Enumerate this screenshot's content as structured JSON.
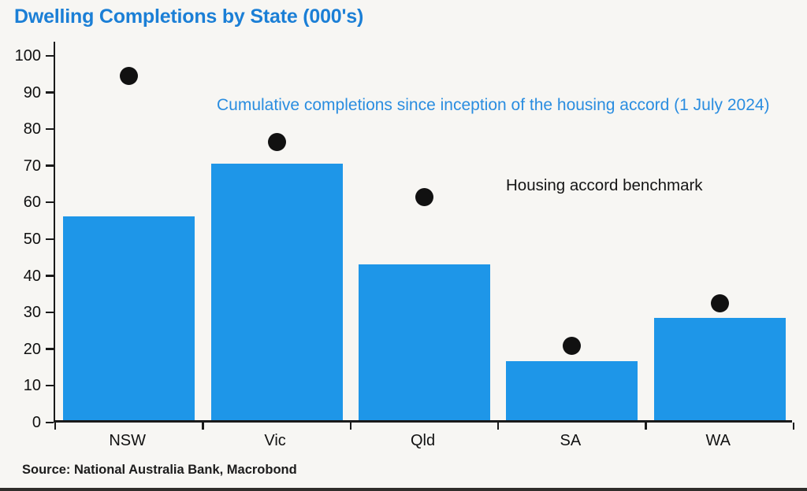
{
  "page": {
    "title": "Dwelling Completions by State (000's)",
    "source": "Source: National Australia Bank, Macrobond"
  },
  "annotations": {
    "completions_label": "Cumulative completions since inception of the housing accord (1 July 2024)",
    "benchmark_label": "Housing accord benchmark"
  },
  "colors": {
    "background": "#f7f6f3",
    "title": "#1b7fd6",
    "subtitle": "#2a8de0",
    "bar": "#1e96e8",
    "dot": "#111111",
    "axis": "#1a1a1a"
  },
  "chart_data": {
    "type": "bar",
    "title": "Dwelling Completions by State (000's)",
    "categories": [
      "NSW",
      "Vic",
      "Qld",
      "SA",
      "WA"
    ],
    "series": [
      {
        "name": "Cumulative completions since inception of the housing accord (1 July 2024)",
        "type": "bar",
        "values": [
          55.5,
          70,
          42.5,
          16,
          28
        ]
      },
      {
        "name": "Housing accord benchmark",
        "type": "scatter",
        "values": [
          94.5,
          76.5,
          61.5,
          21,
          32.5
        ]
      }
    ],
    "xlabel": "",
    "ylabel": "",
    "ylim": [
      0,
      100
    ],
    "ytick_step": 10,
    "grid": false,
    "legend_position": "inline-text-annotations",
    "source": "Source: National Australia Bank, Macrobond"
  }
}
